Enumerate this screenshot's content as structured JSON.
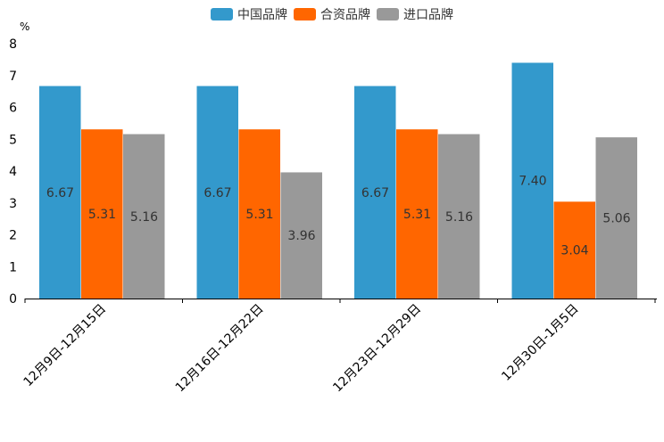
{
  "chart_data": {
    "type": "bar",
    "title": "",
    "xlabel": "",
    "ylabel": "%",
    "ylim": [
      0,
      8
    ],
    "yticks": [
      0,
      1,
      2,
      3,
      4,
      5,
      6,
      7,
      8
    ],
    "grid": false,
    "legend_position": "top-center",
    "categories": [
      "12月9日-12月15日",
      "12月16日-12月22日",
      "12月23日-12月29日",
      "12月30日-1月5日"
    ],
    "series": [
      {
        "name": "中国品牌",
        "color": "#3399CC",
        "values": [
          6.67,
          6.67,
          6.67,
          7.4
        ],
        "labels": [
          "6.67",
          "6.67",
          "6.67",
          "7.40"
        ]
      },
      {
        "name": "合资品牌",
        "color": "#FF6600",
        "values": [
          5.31,
          5.31,
          5.31,
          3.04
        ],
        "labels": [
          "5.31",
          "5.31",
          "5.31",
          "3.04"
        ]
      },
      {
        "name": "进口品牌",
        "color": "#999999",
        "values": [
          5.16,
          3.96,
          5.16,
          5.06
        ],
        "labels": [
          "5.16",
          "3.96",
          "5.16",
          "5.06"
        ]
      }
    ]
  }
}
